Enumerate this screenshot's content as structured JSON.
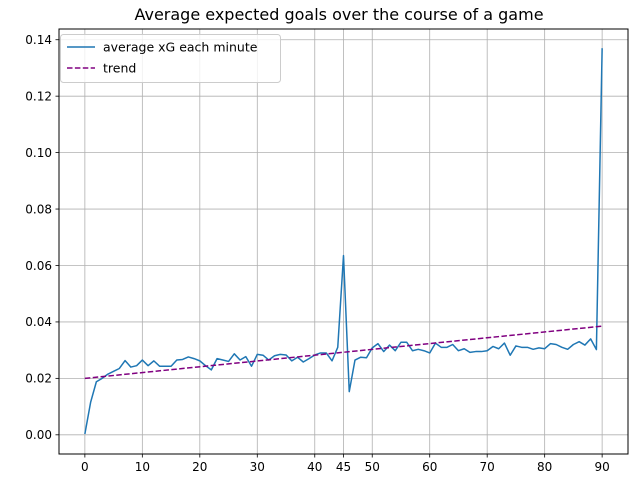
{
  "chart_data": {
    "type": "line",
    "title": "Average expected goals over the course of a game",
    "xlabel": "",
    "ylabel": "",
    "xlim": [
      -4.5,
      94.5
    ],
    "ylim": [
      -0.0068,
      0.1438
    ],
    "xticks": [
      0,
      10,
      20,
      30,
      40,
      45,
      50,
      60,
      70,
      80,
      90
    ],
    "yticks": [
      0.0,
      0.02,
      0.04,
      0.06,
      0.08,
      0.1,
      0.12,
      0.14
    ],
    "ytick_labels": [
      "0.00",
      "0.02",
      "0.04",
      "0.06",
      "0.08",
      "0.10",
      "0.12",
      "0.14"
    ],
    "grid": true,
    "legend_position": "top-left",
    "series": [
      {
        "name": "average xG each minute",
        "style": "solid",
        "color": "#1f77b4",
        "x": [
          0,
          1,
          2,
          3,
          4,
          5,
          6,
          7,
          8,
          9,
          10,
          11,
          12,
          13,
          14,
          15,
          16,
          17,
          18,
          19,
          20,
          21,
          22,
          23,
          24,
          25,
          26,
          27,
          28,
          29,
          30,
          31,
          32,
          33,
          34,
          35,
          36,
          37,
          38,
          39,
          40,
          41,
          42,
          43,
          44,
          45,
          46,
          47,
          48,
          49,
          50,
          51,
          52,
          53,
          54,
          55,
          56,
          57,
          58,
          59,
          60,
          61,
          62,
          63,
          64,
          65,
          66,
          67,
          68,
          69,
          70,
          71,
          72,
          73,
          74,
          75,
          76,
          77,
          78,
          79,
          80,
          81,
          82,
          83,
          84,
          85,
          86,
          87,
          88,
          89,
          90
        ],
        "y": [
          0.0003,
          0.0115,
          0.0188,
          0.02,
          0.0215,
          0.0225,
          0.0235,
          0.0263,
          0.024,
          0.0245,
          0.0265,
          0.0245,
          0.0262,
          0.0243,
          0.0243,
          0.0243,
          0.0265,
          0.0267,
          0.0276,
          0.027,
          0.0262,
          0.0245,
          0.023,
          0.027,
          0.0265,
          0.026,
          0.0287,
          0.0265,
          0.0277,
          0.0243,
          0.0285,
          0.0282,
          0.0265,
          0.028,
          0.0285,
          0.0283,
          0.0262,
          0.0275,
          0.0258,
          0.027,
          0.0283,
          0.029,
          0.029,
          0.0262,
          0.031,
          0.0635,
          0.0153,
          0.0265,
          0.0275,
          0.0273,
          0.0308,
          0.0323,
          0.0295,
          0.0318,
          0.0298,
          0.0328,
          0.0328,
          0.0298,
          0.0303,
          0.0298,
          0.029,
          0.0325,
          0.031,
          0.031,
          0.032,
          0.0298,
          0.0305,
          0.0292,
          0.0295,
          0.0295,
          0.0298,
          0.0313,
          0.0305,
          0.0325,
          0.0282,
          0.0315,
          0.031,
          0.031,
          0.0303,
          0.0308,
          0.0305,
          0.0323,
          0.032,
          0.031,
          0.0303,
          0.032,
          0.033,
          0.0318,
          0.034,
          0.0302,
          0.137
        ]
      },
      {
        "name": "trend",
        "style": "dashed",
        "color": "#800080",
        "x": [
          0,
          90
        ],
        "y": [
          0.02,
          0.0385
        ]
      }
    ]
  }
}
